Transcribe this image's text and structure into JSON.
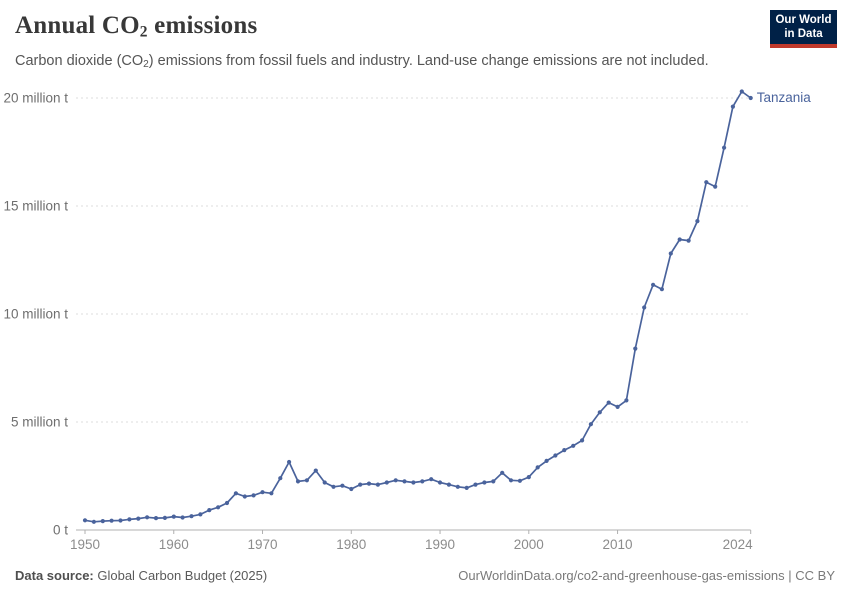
{
  "header": {
    "title_pre": "Annual CO",
    "title_sub": "2",
    "title_post": " emissions",
    "subtitle_pre": "Carbon dioxide (CO",
    "subtitle_sub": "2",
    "subtitle_post": ") emissions from fossil fuels and industry. Land-use change emissions are not included."
  },
  "logo": {
    "line1": "Our World",
    "line2": "in Data",
    "bg_color": "#002147",
    "bar_color": "#c0392b"
  },
  "chart_data": {
    "type": "line",
    "title": "Annual CO2 emissions",
    "xlabel": "",
    "ylabel": "",
    "x_range": [
      1950,
      2025
    ],
    "ylim": [
      0,
      20.5
    ],
    "grid": "horizontal-dashed",
    "legend_position": "end-of-line-label",
    "x_tick_labels": [
      "1950",
      "1960",
      "1970",
      "1980",
      "1990",
      "2000",
      "2010",
      "2024"
    ],
    "x_tick_years": [
      1950,
      1960,
      1970,
      1980,
      1990,
      2000,
      2010,
      2024
    ],
    "y_ticks": [
      {
        "value": 0,
        "label": "0 t"
      },
      {
        "value": 5,
        "label": "5 million t"
      },
      {
        "value": 10,
        "label": "10 million t"
      },
      {
        "value": 15,
        "label": "15 million t"
      },
      {
        "value": 20,
        "label": "20 million t"
      }
    ],
    "unit": "million tonnes",
    "series": [
      {
        "name": "Tanzania",
        "color": "#4a639c",
        "x": [
          1950,
          1951,
          1952,
          1953,
          1954,
          1955,
          1956,
          1957,
          1958,
          1959,
          1960,
          1961,
          1962,
          1963,
          1964,
          1965,
          1966,
          1967,
          1968,
          1969,
          1970,
          1971,
          1972,
          1973,
          1974,
          1975,
          1976,
          1977,
          1978,
          1979,
          1980,
          1981,
          1982,
          1983,
          1984,
          1985,
          1986,
          1987,
          1988,
          1989,
          1990,
          1991,
          1992,
          1993,
          1994,
          1995,
          1996,
          1997,
          1998,
          1999,
          2000,
          2001,
          2002,
          2003,
          2004,
          2005,
          2006,
          2007,
          2008,
          2009,
          2010,
          2011,
          2012,
          2013,
          2014,
          2015,
          2016,
          2017,
          2018,
          2019,
          2020,
          2021,
          2022,
          2023,
          2024,
          2025
        ],
        "values": [
          0.45,
          0.38,
          0.41,
          0.43,
          0.44,
          0.49,
          0.53,
          0.59,
          0.55,
          0.56,
          0.62,
          0.58,
          0.64,
          0.72,
          0.92,
          1.05,
          1.25,
          1.7,
          1.55,
          1.6,
          1.75,
          1.7,
          2.4,
          3.15,
          2.25,
          2.3,
          2.75,
          2.2,
          2.0,
          2.05,
          1.9,
          2.1,
          2.15,
          2.1,
          2.2,
          2.3,
          2.25,
          2.2,
          2.25,
          2.35,
          2.2,
          2.1,
          2.0,
          1.95,
          2.1,
          2.2,
          2.25,
          2.65,
          2.3,
          2.28,
          2.45,
          2.9,
          3.2,
          3.45,
          3.7,
          3.9,
          4.15,
          4.9,
          5.45,
          5.9,
          5.7,
          6.0,
          8.4,
          10.3,
          11.35,
          11.15,
          12.8,
          13.45,
          13.4,
          14.3,
          16.1,
          15.9,
          17.7,
          19.6,
          20.3,
          20.0
        ]
      }
    ]
  },
  "footer": {
    "source_label": "Data source:",
    "source_value": " Global Carbon Budget (2025)",
    "credit": "OurWorldinData.org/co2-and-greenhouse-gas-emissions | CC BY"
  }
}
